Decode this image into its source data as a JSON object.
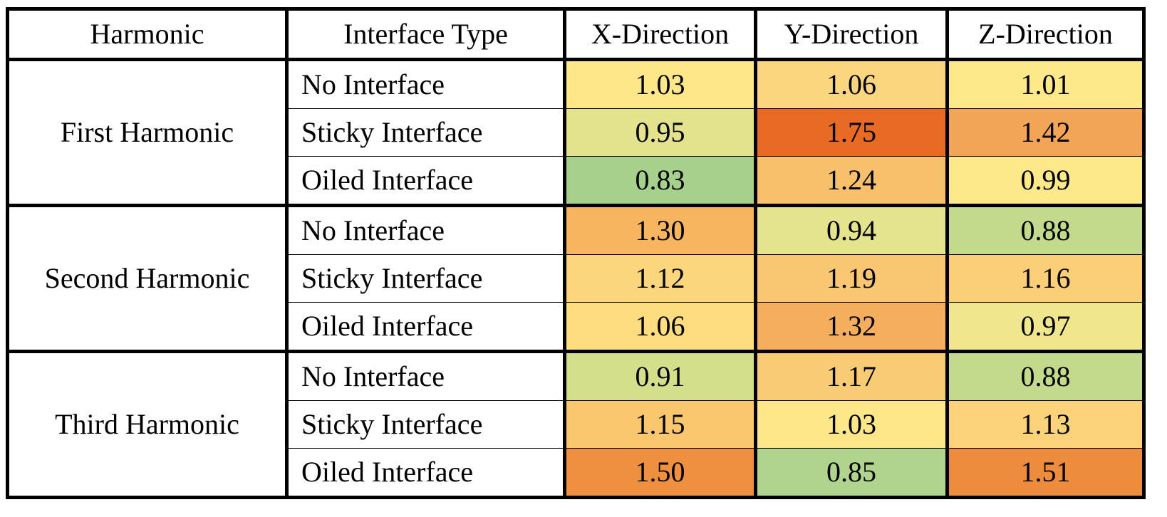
{
  "table": {
    "header": [
      "Harmonic",
      "Interface Type",
      "X-Direction",
      "Y-Direction",
      "Z-Direction"
    ],
    "groups": [
      {
        "label": "First Harmonic",
        "rows": [
          {
            "type": "No Interface",
            "values": [
              "1.03",
              "1.06",
              "1.01"
            ],
            "colors": [
              "#fee788",
              "#fcd57f",
              "#fee98a"
            ]
          },
          {
            "type": "Sticky Interface",
            "values": [
              "0.95",
              "1.75",
              "1.42"
            ],
            "colors": [
              "#e3e38e",
              "#e86a24",
              "#f2a457"
            ]
          },
          {
            "type": "Oiled Interface",
            "values": [
              "0.83",
              "1.24",
              "0.99"
            ],
            "colors": [
              "#a8d08d",
              "#f8c06b",
              "#fee98a"
            ]
          }
        ]
      },
      {
        "label": "Second Harmonic",
        "rows": [
          {
            "type": "No Interface",
            "values": [
              "1.30",
              "0.94",
              "0.88"
            ],
            "colors": [
              "#f7b560",
              "#e4e38e",
              "#c3d98b"
            ]
          },
          {
            "type": "Sticky Interface",
            "values": [
              "1.12",
              "1.19",
              "1.16"
            ],
            "colors": [
              "#fcd67c",
              "#f9c771",
              "#fbcf77"
            ]
          },
          {
            "type": "Oiled Interface",
            "values": [
              "1.06",
              "1.32",
              "0.97"
            ],
            "colors": [
              "#fddd80",
              "#f5ae5e",
              "#f0e68d"
            ]
          }
        ]
      },
      {
        "label": "Third Harmonic",
        "rows": [
          {
            "type": "No Interface",
            "values": [
              "0.91",
              "1.17",
              "0.88"
            ],
            "colors": [
              "#d4df8c",
              "#f9cb74",
              "#c3d98b"
            ]
          },
          {
            "type": "Sticky Interface",
            "values": [
              "1.15",
              "1.03",
              "1.13"
            ],
            "colors": [
              "#fac76f",
              "#fee788",
              "#fcd37b"
            ]
          },
          {
            "type": "Oiled Interface",
            "values": [
              "1.50",
              "0.85",
              "1.51"
            ],
            "colors": [
              "#ee903f",
              "#b0d38d",
              "#ee8c3d"
            ]
          }
        ]
      }
    ]
  }
}
